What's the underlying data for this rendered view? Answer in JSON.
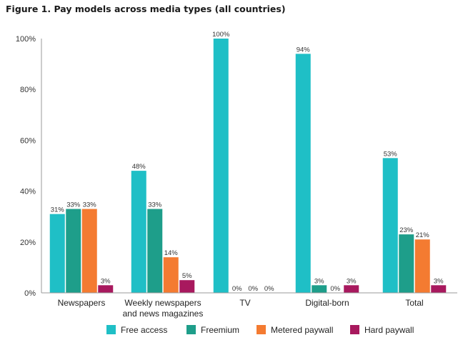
{
  "chart_data": {
    "type": "bar",
    "title": "Figure 1. Pay models across media types (all countries)",
    "xlabel": "",
    "ylabel": "",
    "ylim": [
      0,
      100
    ],
    "yticks": [
      "0%",
      "20%",
      "40%",
      "60%",
      "80%",
      "100%"
    ],
    "ytick_values": [
      0,
      20,
      40,
      60,
      80,
      100
    ],
    "grid": false,
    "legend_position": "bottom",
    "categories": [
      [
        "Newspapers"
      ],
      [
        "Weekly newspapers",
        "and news magazines"
      ],
      [
        "TV"
      ],
      [
        "Digital-born"
      ],
      [
        "Total"
      ]
    ],
    "series": [
      {
        "name": "Free access",
        "color": "#1fbfc6",
        "values": [
          31,
          48,
          100,
          94,
          53
        ],
        "labels": [
          "31%",
          "48%",
          "100%",
          "94%",
          "53%"
        ]
      },
      {
        "name": "Freemium",
        "color": "#1e9e8a",
        "values": [
          33,
          33,
          0,
          3,
          23
        ],
        "labels": [
          "33%",
          "33%",
          "0%",
          "3%",
          "23%"
        ]
      },
      {
        "name": "Metered paywall",
        "color": "#f47b31",
        "values": [
          33,
          14,
          0,
          0,
          21
        ],
        "labels": [
          "33%",
          "14%",
          "0%",
          "0%",
          "21%"
        ]
      },
      {
        "name": "Hard paywall",
        "color": "#a8195e",
        "values": [
          3,
          5,
          0,
          3,
          3
        ],
        "labels": [
          "3%",
          "5%",
          "0%",
          "3%",
          "3%"
        ]
      }
    ]
  }
}
